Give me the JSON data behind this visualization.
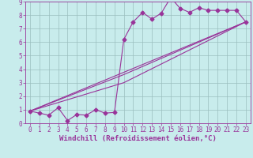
{
  "title": "",
  "xlabel": "Windchill (Refroidissement éolien,°C)",
  "ylabel": "",
  "bg_color": "#c8ecec",
  "line_color": "#993399",
  "grid_color": "#9bbfbf",
  "xlim": [
    -0.5,
    23.5
  ],
  "ylim": [
    0,
    9
  ],
  "xticks": [
    0,
    1,
    2,
    3,
    4,
    5,
    6,
    7,
    8,
    9,
    10,
    11,
    12,
    13,
    14,
    15,
    16,
    17,
    18,
    19,
    20,
    21,
    22,
    23
  ],
  "yticks": [
    0,
    1,
    2,
    3,
    4,
    5,
    6,
    7,
    8,
    9
  ],
  "series1_x": [
    0,
    1,
    2,
    3,
    4,
    5,
    6,
    7,
    8,
    9,
    10,
    11,
    12,
    13,
    14,
    15,
    16,
    17,
    18,
    19,
    20,
    21,
    22,
    23
  ],
  "series1_y": [
    0.9,
    0.75,
    0.6,
    1.15,
    0.2,
    0.65,
    0.6,
    1.0,
    0.75,
    0.8,
    6.2,
    7.5,
    8.2,
    7.7,
    8.15,
    9.3,
    8.5,
    8.2,
    8.55,
    8.35,
    8.35,
    8.35,
    8.35,
    7.5
  ],
  "series2_x": [
    0,
    23
  ],
  "series2_y": [
    0.9,
    7.5
  ],
  "series3_x": [
    0,
    10,
    23
  ],
  "series3_y": [
    0.9,
    3.0,
    7.5
  ],
  "series4_x": [
    0,
    10,
    23
  ],
  "series4_y": [
    0.9,
    3.6,
    7.5
  ],
  "marker_size": 2.5,
  "line_width": 0.8,
  "tick_fontsize": 5.5,
  "xlabel_fontsize": 6.5,
  "font_family": "monospace"
}
